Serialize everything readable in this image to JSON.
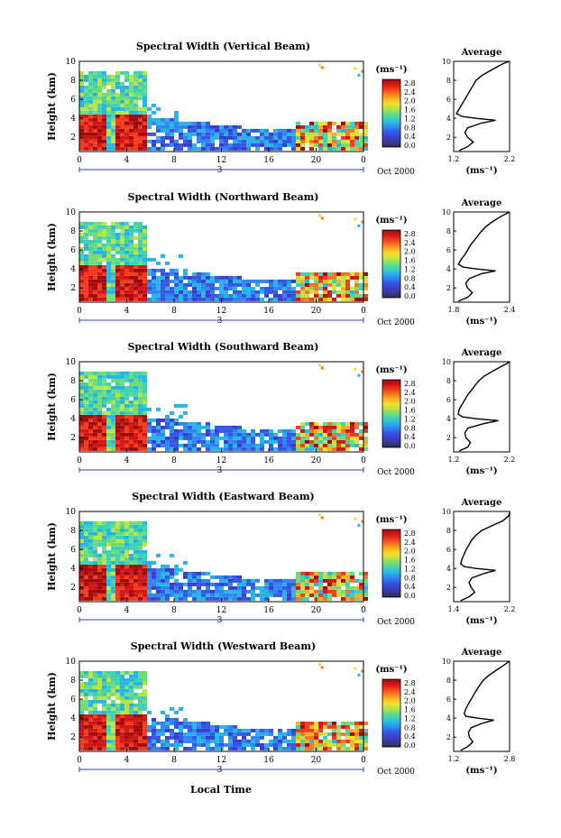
{
  "figure": {
    "xlabel": "Local Time",
    "date_label": "Oct 2000",
    "day_label": "3"
  },
  "colorbar": {
    "unit": "(ms⁻¹)",
    "tick_labels": [
      "2.8",
      "2.4",
      "2.0",
      "1.6",
      "1.2",
      "0.8",
      "0.4",
      "0.0"
    ],
    "colors": [
      "#9e0b0b",
      "#d01616",
      "#f03c1c",
      "#f6781e",
      "#f9b21f",
      "#f2e02c",
      "#b8e445",
      "#6fdc7a",
      "#3fd1b4",
      "#27b5e5",
      "#2e86f0",
      "#3557e4",
      "#3a3ed0",
      "#3b3a8a",
      "#2b2b55"
    ]
  },
  "chart_data": [
    {
      "type": "heatmap",
      "title": "Spectral Width (Vertical Beam)",
      "ylabel": "Height (km)",
      "xlabel": "Local Time",
      "x_ticks": [
        "0",
        "4",
        "8",
        "12",
        "16",
        "20",
        "0"
      ],
      "y_ticks": [
        "2",
        "4",
        "6",
        "8",
        "10"
      ],
      "xlim": [
        0,
        24
      ],
      "ylim": [
        0.5,
        10
      ],
      "colorbar": {
        "label": "(ms⁻¹)",
        "min": 0.0,
        "max": 2.8
      },
      "average_profile": {
        "title": "Average",
        "xlabel": "(ms⁻¹)",
        "x_ticks": [
          "1.2",
          "2.2"
        ],
        "xlim": [
          1.2,
          2.2
        ],
        "y_ticks": [
          "2",
          "4",
          "6",
          "8",
          "10"
        ],
        "height_km": [
          0.6,
          1.0,
          1.5,
          2.0,
          2.5,
          3.0,
          3.5,
          3.8,
          4.0,
          4.2,
          4.5,
          5.0,
          5.5,
          6.0,
          6.5,
          7.0,
          7.5,
          8.0,
          8.5,
          9.0,
          9.5,
          9.8,
          10.0
        ],
        "value": [
          1.3,
          1.45,
          1.55,
          1.45,
          1.4,
          1.45,
          1.7,
          1.95,
          1.6,
          1.35,
          1.25,
          1.3,
          1.35,
          1.4,
          1.45,
          1.5,
          1.55,
          1.6,
          1.7,
          1.85,
          2.0,
          2.1,
          2.2
        ]
      }
    },
    {
      "type": "heatmap",
      "title": "Spectral Width (Northward Beam)",
      "ylabel": "Height (km)",
      "xlabel": "Local Time",
      "x_ticks": [
        "0",
        "4",
        "8",
        "12",
        "16",
        "20",
        "0"
      ],
      "y_ticks": [
        "2",
        "4",
        "6",
        "8",
        "10"
      ],
      "xlim": [
        0,
        24
      ],
      "ylim": [
        0.5,
        10
      ],
      "colorbar": {
        "label": "(ms⁻¹)",
        "min": 0.0,
        "max": 2.8
      },
      "average_profile": {
        "title": "Average",
        "xlabel": "(ms⁻¹)",
        "x_ticks": [
          "1.8",
          "2.4"
        ],
        "xlim": [
          1.8,
          2.4
        ],
        "y_ticks": [
          "2",
          "4",
          "6",
          "8",
          "10"
        ],
        "height_km": [
          0.6,
          1.0,
          1.5,
          2.0,
          2.5,
          3.0,
          3.5,
          3.8,
          4.0,
          4.2,
          4.5,
          5.0,
          5.5,
          6.0,
          6.5,
          7.0,
          7.5,
          8.0,
          8.5,
          9.0,
          9.5,
          9.8,
          10.0
        ],
        "value": [
          1.85,
          1.95,
          2.0,
          1.95,
          1.93,
          1.97,
          2.1,
          2.25,
          2.05,
          1.9,
          1.85,
          1.88,
          1.92,
          1.95,
          1.98,
          2.02,
          2.06,
          2.1,
          2.15,
          2.22,
          2.3,
          2.36,
          2.4
        ]
      }
    },
    {
      "type": "heatmap",
      "title": "Spectral Width (Southward Beam)",
      "ylabel": "Height (km)",
      "xlabel": "Local Time",
      "x_ticks": [
        "0",
        "4",
        "8",
        "12",
        "16",
        "20",
        "0"
      ],
      "y_ticks": [
        "2",
        "4",
        "6",
        "8",
        "10"
      ],
      "xlim": [
        0,
        24
      ],
      "ylim": [
        0.5,
        10
      ],
      "colorbar": {
        "label": "(ms⁻¹)",
        "min": 0.0,
        "max": 2.8
      },
      "average_profile": {
        "title": "Average",
        "xlabel": "(ms⁻¹)",
        "x_ticks": [
          "1.2",
          "2.2"
        ],
        "xlim": [
          1.2,
          2.2
        ],
        "y_ticks": [
          "2",
          "4",
          "6",
          "8",
          "10"
        ],
        "height_km": [
          0.6,
          1.0,
          1.5,
          2.0,
          2.5,
          3.0,
          3.5,
          3.8,
          4.0,
          4.2,
          4.5,
          5.0,
          5.5,
          6.0,
          6.5,
          7.0,
          7.5,
          8.0,
          8.5,
          9.0,
          9.5,
          9.8,
          10.0
        ],
        "value": [
          1.3,
          1.45,
          1.5,
          1.42,
          1.4,
          1.45,
          1.75,
          2.0,
          1.6,
          1.35,
          1.28,
          1.3,
          1.35,
          1.4,
          1.45,
          1.52,
          1.58,
          1.65,
          1.75,
          1.9,
          2.05,
          2.15,
          2.2
        ]
      }
    },
    {
      "type": "heatmap",
      "title": "Spectral Width (Eastward Beam)",
      "ylabel": "Height (km)",
      "xlabel": "Local Time",
      "x_ticks": [
        "0",
        "4",
        "8",
        "12",
        "16",
        "20",
        "0"
      ],
      "y_ticks": [
        "2",
        "4",
        "6",
        "8",
        "10"
      ],
      "xlim": [
        0,
        24
      ],
      "ylim": [
        0.5,
        10
      ],
      "colorbar": {
        "label": "(ms⁻¹)",
        "min": 0.0,
        "max": 2.8
      },
      "average_profile": {
        "title": "Average",
        "xlabel": "(ms⁻¹)",
        "x_ticks": [
          "1.4",
          "2.2"
        ],
        "xlim": [
          1.4,
          2.2
        ],
        "y_ticks": [
          "2",
          "4",
          "6",
          "8",
          "10"
        ],
        "height_km": [
          0.6,
          1.0,
          1.5,
          2.0,
          2.5,
          3.0,
          3.5,
          3.8,
          4.0,
          4.2,
          4.5,
          5.0,
          5.5,
          6.0,
          6.5,
          7.0,
          7.5,
          8.0,
          8.5,
          9.0,
          9.5,
          9.8,
          10.0
        ],
        "value": [
          1.5,
          1.62,
          1.7,
          1.65,
          1.62,
          1.66,
          1.85,
          2.0,
          1.72,
          1.55,
          1.5,
          1.52,
          1.55,
          1.58,
          1.62,
          1.66,
          1.72,
          1.8,
          1.95,
          2.1,
          2.18,
          2.2,
          2.2
        ]
      }
    },
    {
      "type": "heatmap",
      "title": "Spectral Width (Westward Beam)",
      "ylabel": "Height (km)",
      "xlabel": "Local Time",
      "x_ticks": [
        "0",
        "4",
        "8",
        "12",
        "16",
        "20",
        "0"
      ],
      "y_ticks": [
        "2",
        "4",
        "6",
        "8",
        "10"
      ],
      "xlim": [
        0,
        24
      ],
      "ylim": [
        0.5,
        10
      ],
      "colorbar": {
        "label": "(ms⁻¹)",
        "min": 0.0,
        "max": 2.8
      },
      "average_profile": {
        "title": "Average",
        "xlabel": "(ms⁻¹)",
        "x_ticks": [
          "1.2",
          "2.8"
        ],
        "xlim": [
          1.2,
          2.8
        ],
        "y_ticks": [
          "2",
          "4",
          "6",
          "8",
          "10"
        ],
        "height_km": [
          0.6,
          1.0,
          1.5,
          2.0,
          2.5,
          3.0,
          3.5,
          3.8,
          4.0,
          4.2,
          4.5,
          5.0,
          5.5,
          6.0,
          6.5,
          7.0,
          7.5,
          8.0,
          8.5,
          9.0,
          9.5,
          9.8,
          10.0
        ],
        "value": [
          1.4,
          1.6,
          1.75,
          1.65,
          1.62,
          1.7,
          2.05,
          2.35,
          1.9,
          1.55,
          1.5,
          1.55,
          1.62,
          1.7,
          1.78,
          1.86,
          1.95,
          2.05,
          2.2,
          2.4,
          2.6,
          2.72,
          2.8
        ]
      }
    }
  ]
}
